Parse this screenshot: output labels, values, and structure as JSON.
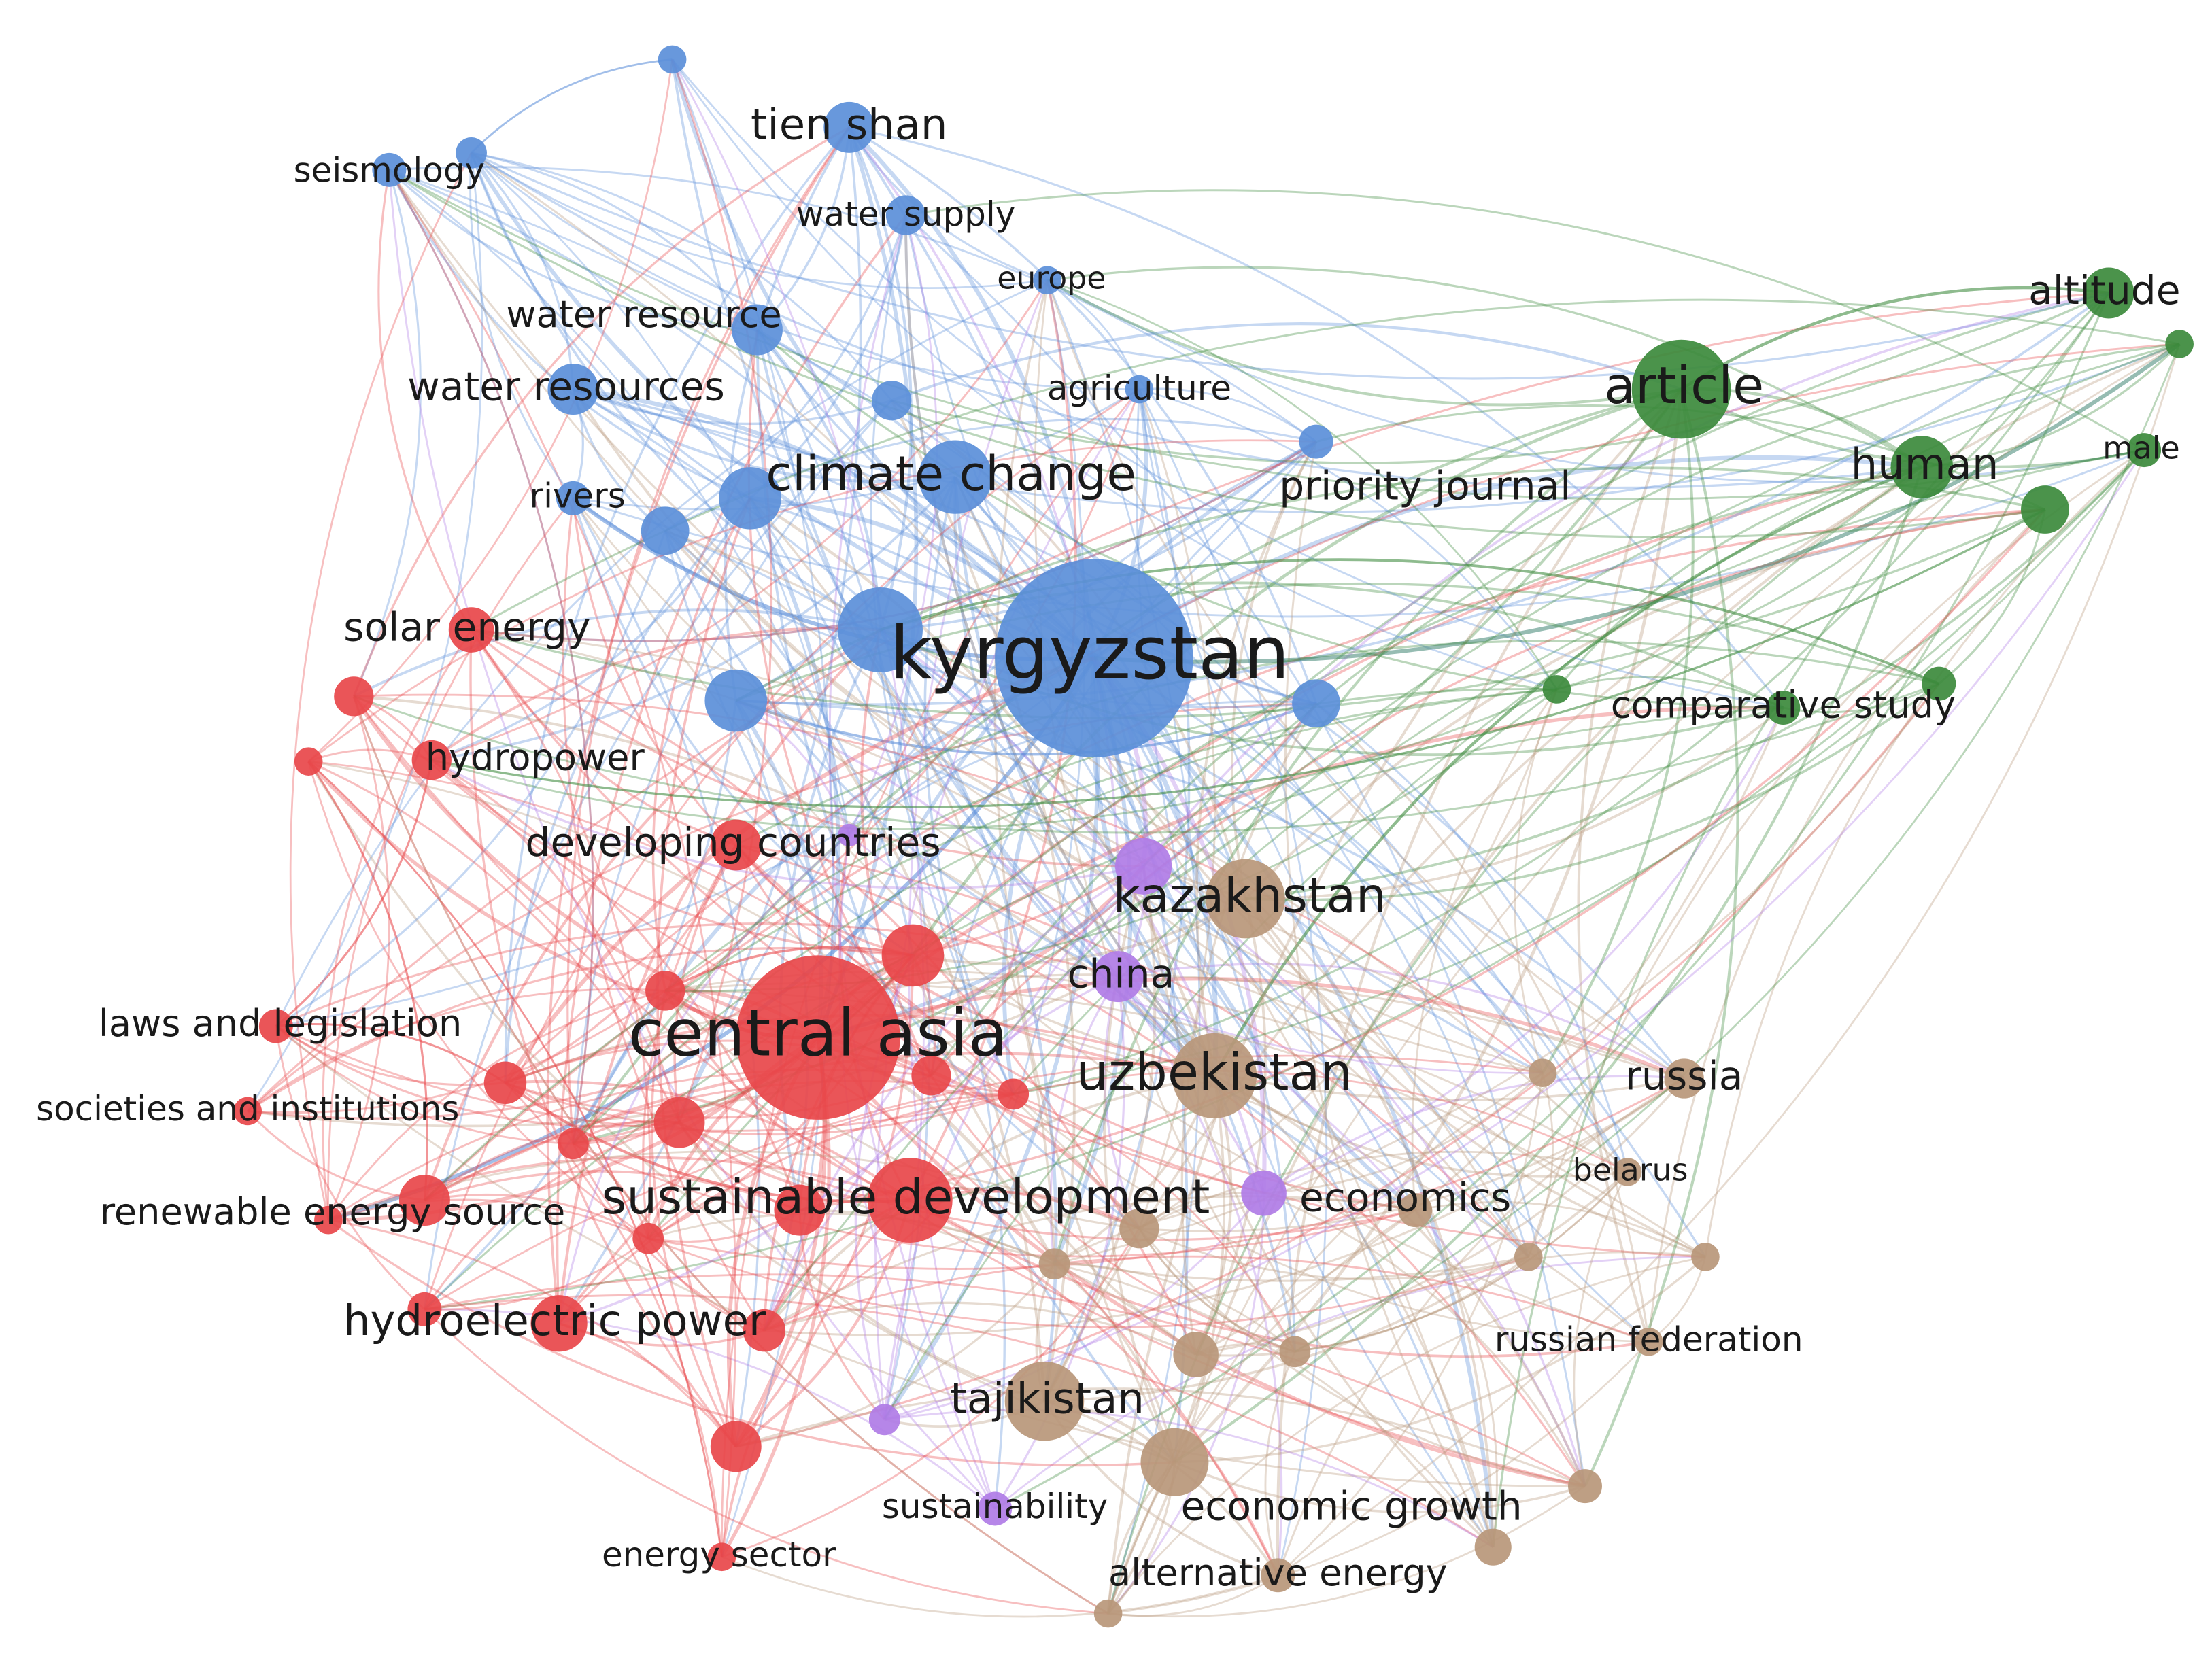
{
  "nodes": [
    {
      "label": "tien shan",
      "color": "#5b8fd9"
    },
    {
      "label": "seismology",
      "color": "#5b8fd9"
    },
    {
      "label": "water supply",
      "color": "#5b8fd9"
    },
    {
      "label": "europe",
      "color": "#5b8fd9"
    },
    {
      "label": "water resource",
      "color": "#5b8fd9"
    },
    {
      "label": "water resources",
      "color": "#5b8fd9"
    },
    {
      "label": "agriculture",
      "color": "#5b8fd9"
    },
    {
      "label": "climate change",
      "color": "#5b8fd9"
    },
    {
      "label": "rivers",
      "color": "#5b8fd9"
    },
    {
      "label": "priority journal",
      "color": "#5b8fd9"
    },
    {
      "label": "kyrgyzstan",
      "color": "#5b8fd9"
    },
    {
      "label": "solar energy",
      "color": "#e8474a"
    },
    {
      "label": "hydropower",
      "color": "#e8474a"
    },
    {
      "label": "developing countries",
      "color": "#e8474a"
    },
    {
      "label": "kazakhstan",
      "color": "#b8977a"
    },
    {
      "label": "china",
      "color": "#b07ce6"
    },
    {
      "label": "central asia",
      "color": "#e8474a"
    },
    {
      "label": "laws and legislation",
      "color": "#e8474a"
    },
    {
      "label": "uzbekistan",
      "color": "#b8977a"
    },
    {
      "label": "russia",
      "color": "#b8977a"
    },
    {
      "label": "societies and institutions",
      "color": "#e8474a"
    },
    {
      "label": "belarus",
      "color": "#b8977a"
    },
    {
      "label": "sustainable development",
      "color": "#e8474a"
    },
    {
      "label": "economics",
      "color": "#b07ce6"
    },
    {
      "label": "renewable energy source",
      "color": "#e8474a"
    },
    {
      "label": "hydroelectric power",
      "color": "#e8474a"
    },
    {
      "label": "russian federation",
      "color": "#b8977a"
    },
    {
      "label": "tajikistan",
      "color": "#b8977a"
    },
    {
      "label": "sustainability",
      "color": "#b07ce6"
    },
    {
      "label": "economic growth",
      "color": "#b8977a"
    },
    {
      "label": "energy sector",
      "color": "#e8474a"
    },
    {
      "label": "alternative energy",
      "color": "#b8977a"
    },
    {
      "label": "article",
      "color": "#3c8a3c"
    },
    {
      "label": "altitude",
      "color": "#3c8a3c"
    },
    {
      "label": "human",
      "color": "#3c8a3c"
    },
    {
      "label": "male",
      "color": "#3c8a3c"
    },
    {
      "label": "comparative study",
      "color": "#3c8a3c"
    }
  ]
}
